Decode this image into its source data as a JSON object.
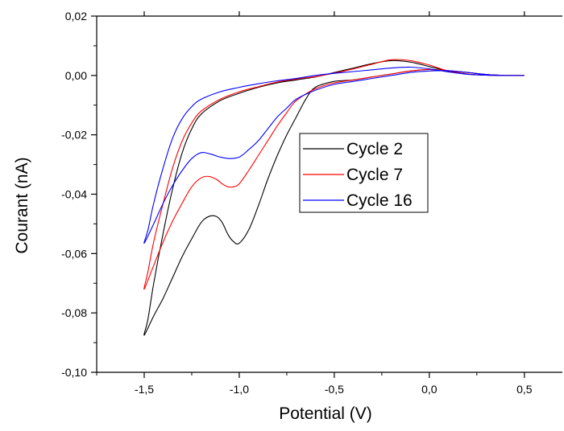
{
  "chart_data": {
    "type": "line",
    "title": "",
    "xlabel": "Potential (V)",
    "ylabel": "Courant (nA)",
    "xlim": [
      -1.75,
      0.7
    ],
    "ylim": [
      -0.1,
      0.02
    ],
    "x_ticks": [
      -1.5,
      -1.0,
      -0.5,
      0.0,
      0.5
    ],
    "x_tick_labels": [
      "-1,5",
      "-1,0",
      "-0,5",
      "0,0",
      "0,5"
    ],
    "y_ticks": [
      0.02,
      0.0,
      -0.02,
      -0.04,
      -0.06,
      -0.08,
      -0.1
    ],
    "y_tick_labels": [
      "0,02",
      "0,00",
      "-0,02",
      "-0,04",
      "-0,06",
      "-0,08",
      "-0,10"
    ],
    "grid": false,
    "legend_position": "center-right",
    "series": [
      {
        "name": "Cycle 2",
        "color": "#000000",
        "x": [
          0.5,
          0.4,
          0.3,
          0.2,
          0.1,
          0.0,
          -0.1,
          -0.2,
          -0.3,
          -0.4,
          -0.5,
          -0.6,
          -0.65,
          -0.7,
          -0.75,
          -0.8,
          -0.85,
          -0.9,
          -0.95,
          -1.0,
          -1.03,
          -1.06,
          -1.09,
          -1.12,
          -1.16,
          -1.2,
          -1.25,
          -1.3,
          -1.35,
          -1.4,
          -1.45,
          -1.5,
          -1.48,
          -1.45,
          -1.4,
          -1.35,
          -1.3,
          -1.25,
          -1.2,
          -1.1,
          -1.0,
          -0.9,
          -0.8,
          -0.7,
          -0.6,
          -0.5,
          -0.4,
          -0.3,
          -0.2,
          -0.1,
          0.0,
          0.1,
          0.2,
          0.3,
          0.4,
          0.5
        ],
        "y": [
          0.0,
          0.0,
          0.0003,
          0.001,
          0.0016,
          0.002,
          0.0015,
          0.0005,
          -0.0005,
          -0.0015,
          -0.002,
          -0.004,
          -0.008,
          -0.014,
          -0.02,
          -0.027,
          -0.035,
          -0.044,
          -0.052,
          -0.0565,
          -0.056,
          -0.0535,
          -0.0495,
          -0.0475,
          -0.0475,
          -0.0495,
          -0.055,
          -0.061,
          -0.068,
          -0.075,
          -0.081,
          -0.0875,
          -0.082,
          -0.07,
          -0.053,
          -0.038,
          -0.026,
          -0.018,
          -0.013,
          -0.0085,
          -0.006,
          -0.004,
          -0.0025,
          -0.0015,
          -0.0005,
          0.001,
          0.0025,
          0.004,
          0.005,
          0.0045,
          0.003,
          0.0015,
          0.0005,
          0.0001,
          0.0,
          0.0
        ]
      },
      {
        "name": "Cycle 7",
        "color": "#ff0000",
        "x": [
          0.5,
          0.4,
          0.3,
          0.2,
          0.1,
          0.0,
          -0.1,
          -0.2,
          -0.3,
          -0.4,
          -0.5,
          -0.6,
          -0.7,
          -0.75,
          -0.8,
          -0.85,
          -0.9,
          -0.95,
          -1.0,
          -1.03,
          -1.06,
          -1.09,
          -1.12,
          -1.16,
          -1.2,
          -1.25,
          -1.3,
          -1.35,
          -1.4,
          -1.45,
          -1.5,
          -1.48,
          -1.45,
          -1.4,
          -1.35,
          -1.3,
          -1.25,
          -1.2,
          -1.1,
          -1.0,
          -0.9,
          -0.8,
          -0.7,
          -0.6,
          -0.5,
          -0.4,
          -0.3,
          -0.2,
          -0.1,
          0.0,
          0.1,
          0.2,
          0.3,
          0.4,
          0.5
        ],
        "y": [
          0.0,
          0.0,
          0.0003,
          0.001,
          0.0016,
          0.002,
          0.0015,
          0.0005,
          -0.0005,
          -0.0015,
          -0.0025,
          -0.0045,
          -0.0085,
          -0.0125,
          -0.017,
          -0.022,
          -0.027,
          -0.032,
          -0.0365,
          -0.0375,
          -0.0375,
          -0.0365,
          -0.035,
          -0.034,
          -0.0345,
          -0.0375,
          -0.043,
          -0.049,
          -0.056,
          -0.064,
          -0.072,
          -0.066,
          -0.056,
          -0.043,
          -0.031,
          -0.022,
          -0.016,
          -0.012,
          -0.008,
          -0.0055,
          -0.0038,
          -0.0022,
          -0.0012,
          -0.0004,
          0.0008,
          0.0022,
          0.0038,
          0.0053,
          0.005,
          0.0035,
          0.0015,
          0.0005,
          0.0001,
          0.0,
          0.0
        ]
      },
      {
        "name": "Cycle 16",
        "color": "#0000ff",
        "x": [
          0.5,
          0.4,
          0.3,
          0.2,
          0.1,
          0.0,
          -0.1,
          -0.2,
          -0.3,
          -0.4,
          -0.5,
          -0.6,
          -0.7,
          -0.75,
          -0.8,
          -0.85,
          -0.9,
          -0.95,
          -1.0,
          -1.05,
          -1.1,
          -1.15,
          -1.2,
          -1.25,
          -1.3,
          -1.35,
          -1.4,
          -1.45,
          -1.5,
          -1.48,
          -1.45,
          -1.4,
          -1.35,
          -1.3,
          -1.25,
          -1.2,
          -1.1,
          -1.0,
          -0.9,
          -0.8,
          -0.7,
          -0.6,
          -0.5,
          -0.4,
          -0.3,
          -0.2,
          -0.1,
          0.0,
          0.1,
          0.2,
          0.3,
          0.4,
          0.5
        ],
        "y": [
          0.0,
          0.0,
          0.0003,
          0.001,
          0.0016,
          0.0015,
          0.001,
          0.0,
          -0.001,
          -0.002,
          -0.003,
          -0.005,
          -0.008,
          -0.011,
          -0.014,
          -0.018,
          -0.022,
          -0.025,
          -0.0275,
          -0.028,
          -0.0275,
          -0.0265,
          -0.026,
          -0.028,
          -0.032,
          -0.037,
          -0.043,
          -0.05,
          -0.0565,
          -0.052,
          -0.043,
          -0.031,
          -0.021,
          -0.0145,
          -0.0105,
          -0.008,
          -0.0055,
          -0.004,
          -0.0028,
          -0.0018,
          -0.001,
          0.0,
          0.0007,
          0.0013,
          0.0019,
          0.0025,
          0.0028,
          0.0022,
          0.0012,
          0.0004,
          0.0001,
          0.0,
          0.0
        ]
      }
    ]
  }
}
